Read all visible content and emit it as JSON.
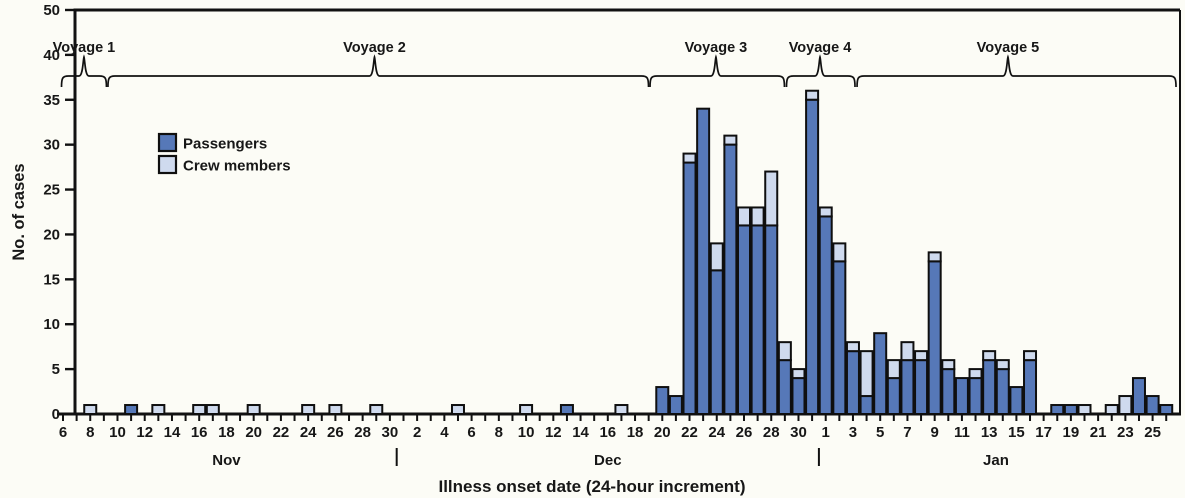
{
  "figure": {
    "background": "#fcfcf6"
  },
  "chart_data": {
    "type": "bar",
    "stacked": true,
    "title": "",
    "xlabel": "Illness onset date (24-hour increment)",
    "ylabel": "No. of cases",
    "ylim": [
      0,
      50
    ],
    "grid": false,
    "legend_position": "upper-left-inside",
    "y_tick_labels": [
      "0",
      "5",
      "10",
      "15",
      "20",
      "25",
      "30",
      "35",
      "40",
      "50"
    ],
    "x_labels": [
      "6",
      "",
      "8",
      "",
      "10",
      "",
      "12",
      "",
      "14",
      "",
      "16",
      "",
      "18",
      "",
      "20",
      "",
      "22",
      "",
      "24",
      "",
      "26",
      "",
      "28",
      "",
      "30",
      "",
      "2",
      "",
      "4",
      "",
      "6",
      "",
      "8",
      "",
      "10",
      "",
      "12",
      "",
      "14",
      "",
      "16",
      "",
      "18",
      "",
      "20",
      "",
      "22",
      "",
      "24",
      "",
      "26",
      "",
      "28",
      "",
      "30",
      "",
      "1",
      "",
      "3",
      "",
      "5",
      "",
      "7",
      "",
      "9",
      "",
      "11",
      "",
      "13",
      "",
      "15",
      "",
      "17",
      "",
      "19",
      "",
      "21",
      "",
      "23",
      "",
      "25",
      ""
    ],
    "months": [
      {
        "name": "Nov",
        "start_index": 0,
        "end_index": 24
      },
      {
        "name": "Dec",
        "start_index": 25,
        "end_index": 55
      },
      {
        "name": "Jan",
        "start_index": 56,
        "end_index": 81
      }
    ],
    "series": [
      {
        "name": "Passengers",
        "color": "#5678b8",
        "values": [
          0,
          0,
          0,
          0,
          0,
          1,
          0,
          0,
          0,
          0,
          0,
          0,
          0,
          0,
          0,
          0,
          0,
          0,
          0,
          0,
          0,
          0,
          0,
          0,
          0,
          0,
          0,
          0,
          0,
          0,
          0,
          0,
          0,
          0,
          0,
          0,
          0,
          1,
          0,
          0,
          0,
          0,
          0,
          0,
          3,
          2,
          28,
          34,
          16,
          30,
          21,
          21,
          21,
          6,
          4,
          35,
          22,
          17,
          7,
          2,
          9,
          4,
          6,
          6,
          17,
          5,
          4,
          4,
          6,
          5,
          3,
          6,
          0,
          1,
          1,
          0,
          0,
          0,
          0,
          4,
          2,
          1
        ]
      },
      {
        "name": "Crew members",
        "color": "#cfdaee",
        "values": [
          0,
          0,
          1,
          0,
          0,
          0,
          0,
          1,
          0,
          0,
          1,
          1,
          0,
          0,
          1,
          0,
          0,
          0,
          1,
          0,
          1,
          0,
          0,
          1,
          0,
          0,
          0,
          0,
          0,
          1,
          0,
          0,
          0,
          0,
          1,
          0,
          0,
          0,
          0,
          0,
          0,
          1,
          0,
          0,
          0,
          0,
          1,
          0,
          3,
          1,
          2,
          2,
          6,
          2,
          1,
          1,
          1,
          2,
          1,
          5,
          0,
          2,
          2,
          1,
          1,
          1,
          0,
          1,
          1,
          1,
          0,
          1,
          0,
          0,
          0,
          1,
          0,
          1,
          2,
          0,
          0,
          0
        ]
      }
    ],
    "voyages": [
      {
        "label": "Voyage 1",
        "start_day": -0.11,
        "end_day": 3.19,
        "cusp_day": 1.54
      },
      {
        "label": "Voyage 2",
        "start_day": 3.3,
        "end_day": 42.99,
        "cusp_day": 22.87
      },
      {
        "label": "Voyage 3",
        "start_day": 43.1,
        "end_day": 52.97,
        "cusp_day": 47.94
      },
      {
        "label": "Voyage 4",
        "start_day": 53.12,
        "end_day": 58.15,
        "cusp_day": 55.58
      },
      {
        "label": "Voyage 5",
        "start_day": 58.3,
        "end_day": 81.72,
        "cusp_day": 69.38
      }
    ]
  }
}
